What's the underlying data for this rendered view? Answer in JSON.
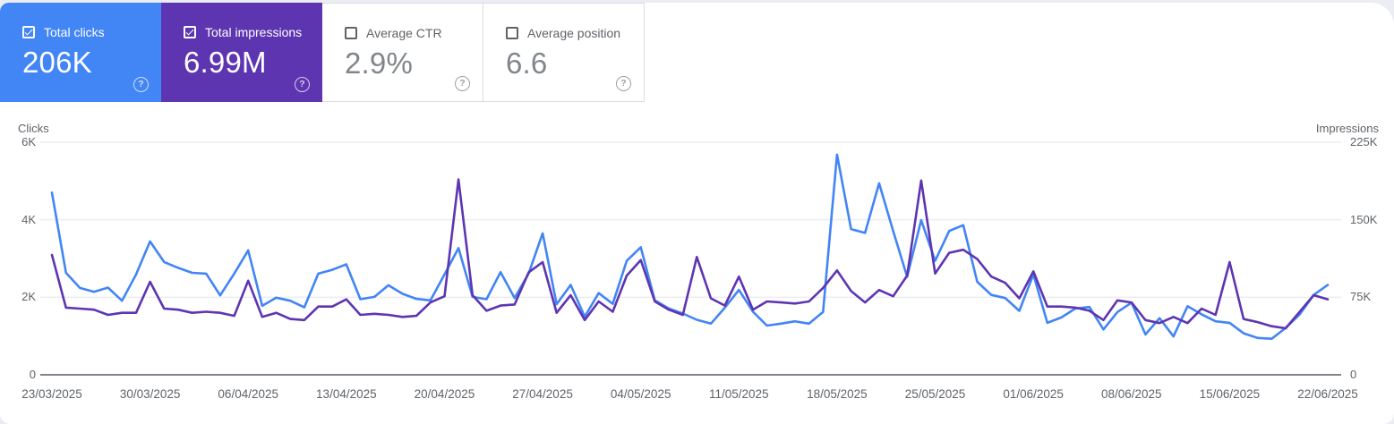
{
  "cards": [
    {
      "label": "Total clicks",
      "value": "206K",
      "selected": true,
      "color": "#4285f4",
      "text_color": "#ffffff"
    },
    {
      "label": "Total impressions",
      "value": "6.99M",
      "selected": true,
      "color": "#5e35b1",
      "text_color": "#ffffff"
    },
    {
      "label": "Average CTR",
      "value": "2.9%",
      "selected": false,
      "color": "#ffffff",
      "text_color": "#80868b"
    },
    {
      "label": "Average position",
      "value": "6.6",
      "selected": false,
      "color": "#ffffff",
      "text_color": "#80868b"
    }
  ],
  "help_icon_glyph": "?",
  "chart_data": {
    "type": "line",
    "grid": "horizontal",
    "legend_position": "none",
    "left_axis": {
      "title": "Clicks",
      "range": [
        0,
        6000
      ],
      "tick_values": [
        0,
        2000,
        4000,
        6000
      ],
      "tick_labels": [
        "0",
        "2K",
        "4K",
        "6K"
      ]
    },
    "right_axis": {
      "title": "Impressions",
      "range": [
        0,
        225000
      ],
      "tick_values": [
        0,
        75000,
        150000,
        225000
      ],
      "tick_labels": [
        "0",
        "75K",
        "150K",
        "225K"
      ]
    },
    "x_start": "23/03/2025",
    "x_end": "22/06/2025",
    "x_points": 92,
    "x_tick_labels": [
      "23/03/2025",
      "30/03/2025",
      "06/04/2025",
      "13/04/2025",
      "20/04/2025",
      "27/04/2025",
      "04/05/2025",
      "11/05/2025",
      "18/05/2025",
      "25/05/2025",
      "01/06/2025",
      "08/06/2025",
      "15/06/2025",
      "22/06/2025"
    ],
    "series": [
      {
        "name": "Total clicks",
        "axis": "left",
        "color": "#4285f4",
        "values": [
          4700,
          2630,
          2240,
          2140,
          2250,
          1910,
          2590,
          3440,
          2910,
          2760,
          2630,
          2610,
          2050,
          2610,
          3210,
          1780,
          1990,
          1910,
          1740,
          2610,
          2710,
          2850,
          1950,
          2010,
          2310,
          2090,
          1960,
          1920,
          2590,
          3270,
          2010,
          1950,
          2650,
          1980,
          2610,
          3650,
          1820,
          2320,
          1500,
          2110,
          1830,
          2940,
          3290,
          1920,
          1710,
          1580,
          1420,
          1320,
          1730,
          2190,
          1630,
          1270,
          1320,
          1380,
          1320,
          1620,
          5680,
          3760,
          3660,
          4940,
          3710,
          2530,
          3990,
          2940,
          3710,
          3860,
          2400,
          2060,
          1980,
          1650,
          2590,
          1340,
          1480,
          1710,
          1750,
          1170,
          1620,
          1860,
          1040,
          1460,
          990,
          1770,
          1560,
          1380,
          1340,
          1070,
          950,
          930,
          1210,
          1560,
          2060,
          2320
        ]
      },
      {
        "name": "Total impressions",
        "axis": "right",
        "color": "#5e35b1",
        "values": [
          116000,
          65000,
          64000,
          63000,
          58000,
          60000,
          60000,
          90000,
          64000,
          63000,
          60000,
          61000,
          60000,
          57000,
          91000,
          56000,
          60000,
          54000,
          53000,
          66000,
          66000,
          73000,
          58000,
          59000,
          58000,
          56000,
          57000,
          70000,
          76000,
          189000,
          77000,
          62000,
          67000,
          68000,
          99000,
          109000,
          60000,
          77000,
          53000,
          71000,
          61000,
          96000,
          111000,
          71000,
          63000,
          58000,
          114000,
          74000,
          67000,
          95000,
          63000,
          71000,
          70000,
          69000,
          71000,
          84000,
          101000,
          81000,
          70000,
          82000,
          76000,
          96000,
          188000,
          98000,
          118000,
          121000,
          112000,
          95000,
          89000,
          74000,
          100000,
          66000,
          66000,
          65000,
          62000,
          53000,
          72000,
          70000,
          53000,
          50000,
          56000,
          50000,
          64000,
          58000,
          109000,
          54000,
          51000,
          47000,
          45000,
          61000,
          77000,
          73000
        ]
      }
    ]
  }
}
